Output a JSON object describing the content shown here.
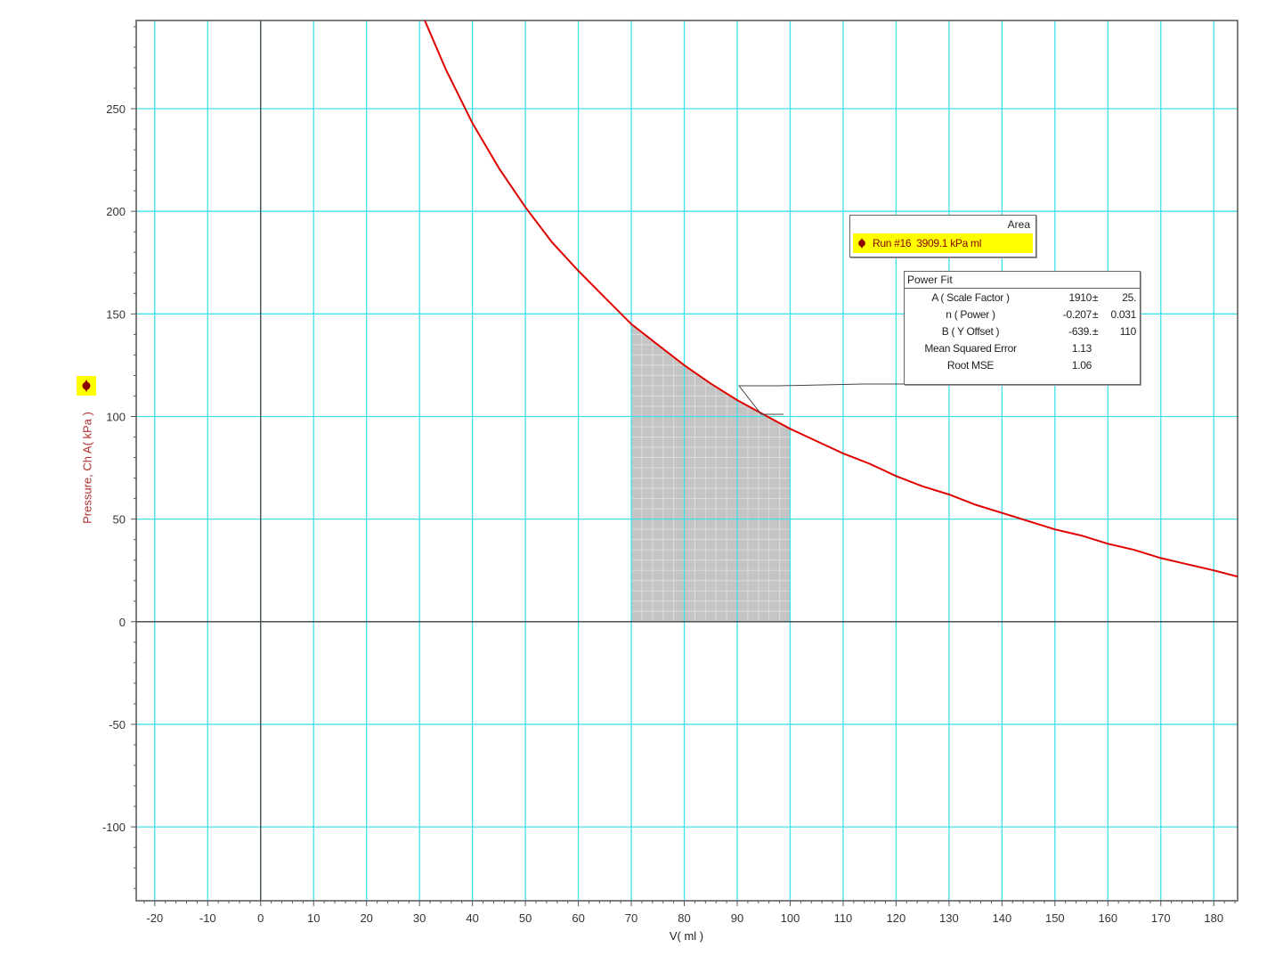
{
  "chart_data": {
    "type": "line",
    "xlabel": "V( ml )",
    "ylabel": "Pressure, Ch A( kPa )",
    "xlim": [
      -23.5,
      184.5
    ],
    "ylim": [
      -136,
      293
    ],
    "x_ticks": [
      -20,
      -10,
      0,
      10,
      20,
      30,
      40,
      50,
      60,
      70,
      80,
      90,
      100,
      110,
      120,
      130,
      140,
      150,
      160,
      170,
      180
    ],
    "y_ticks": [
      -100,
      -50,
      0,
      50,
      100,
      150,
      200,
      250
    ],
    "grid": true,
    "series": [
      {
        "name": "Run #16",
        "color": "#e00000",
        "points": [
          [
            31,
            293
          ],
          [
            35,
            269
          ],
          [
            40,
            243
          ],
          [
            45,
            221
          ],
          [
            50,
            202
          ],
          [
            55,
            185
          ],
          [
            60,
            171
          ],
          [
            65,
            158
          ],
          [
            70,
            145
          ],
          [
            75,
            135
          ],
          [
            80,
            125
          ],
          [
            85,
            116
          ],
          [
            90,
            108
          ],
          [
            95,
            101
          ],
          [
            100,
            94
          ],
          [
            105,
            88
          ],
          [
            110,
            82
          ],
          [
            115,
            77
          ],
          [
            120,
            71
          ],
          [
            125,
            66
          ],
          [
            130,
            62
          ],
          [
            135,
            57
          ],
          [
            140,
            53
          ],
          [
            145,
            49
          ],
          [
            150,
            45
          ],
          [
            155,
            42
          ],
          [
            160,
            38
          ],
          [
            165,
            35
          ],
          [
            170,
            31
          ],
          [
            175,
            28
          ],
          [
            180,
            25
          ],
          [
            184.5,
            22
          ]
        ]
      }
    ],
    "area_region": {
      "x_from": 70,
      "x_to": 100,
      "fill": "#c4c4c4"
    }
  },
  "area_legend": {
    "header": "Area",
    "run_label": "Run #16",
    "value": "3909.1 kPa ml"
  },
  "fit": {
    "title": "Power Fit",
    "rows": [
      {
        "name": "A ( Scale Factor )",
        "value": "1910",
        "pm": "±",
        "unc": "25."
      },
      {
        "name": "n ( Power )",
        "value": "-0.207",
        "pm": "±",
        "unc": "0.031"
      },
      {
        "name": "B ( Y Offset )",
        "value": "-639.",
        "pm": "±",
        "unc": "110"
      },
      {
        "name": "Mean Squared Error",
        "value": "1.13",
        "pm": "",
        "unc": ""
      },
      {
        "name": "Root MSE",
        "value": "1.06",
        "pm": "",
        "unc": ""
      }
    ]
  },
  "colors": {
    "grid": "#40e0e8",
    "axis": "#444444",
    "curve": "#e00000",
    "legend_highlight": "#ffff00",
    "marker": "#8b0000"
  },
  "icons": {
    "series_marker": "diamond-marker-icon"
  }
}
